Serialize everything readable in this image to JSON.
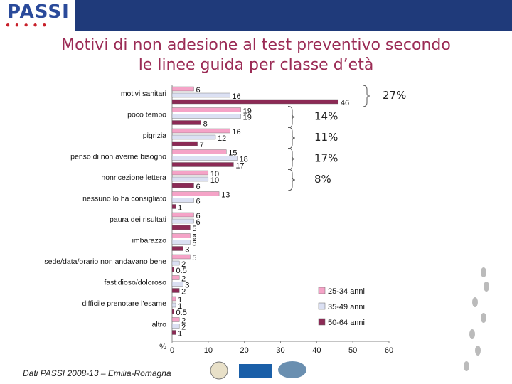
{
  "header": {
    "logo": "PASSI"
  },
  "title_line1": "Motivi di non adesione al test preventivo secondo",
  "title_line2": "le linee guida per classe d’età",
  "footer": {
    "source": "Dati PASSI 2008-13 – Emilia-Romagna"
  },
  "colors": {
    "s1": "#f5a3c7",
    "s2": "#dbe0f3",
    "s3": "#8c2a55",
    "title": "#9b2b55",
    "header": "#1f3a7a"
  },
  "chart_data": {
    "type": "bar",
    "orientation": "horizontal",
    "categories": [
      "motivi sanitari",
      "poco tempo",
      "pigrizia",
      "penso di non averne bisogno",
      "nonricezione lettera",
      "nessuno lo ha consigliato",
      "paura dei risultati",
      "imbarazzo",
      "sede/data/orario non andavano bene",
      "fastidioso/doloroso",
      "difficile prenotare l'esame",
      "altro"
    ],
    "series": [
      {
        "name": "25-34 anni",
        "values": [
          6,
          19,
          16,
          15,
          10,
          13,
          6,
          5,
          5,
          2,
          1,
          2
        ]
      },
      {
        "name": "35-49 anni",
        "values": [
          16,
          19,
          12,
          18,
          10,
          6,
          6,
          5,
          2,
          3,
          1,
          2
        ]
      },
      {
        "name": "50-64 anni",
        "values": [
          46,
          8,
          7,
          17,
          6,
          1,
          5,
          3,
          0.5,
          2,
          0.5,
          1
        ]
      }
    ],
    "value_labels": [
      [
        "6",
        "16",
        "46"
      ],
      [
        "19",
        "19",
        "8"
      ],
      [
        "16",
        "12",
        "7"
      ],
      [
        "15",
        "18",
        "17"
      ],
      [
        "10",
        "10",
        "6"
      ],
      [
        "13",
        "6",
        "1"
      ],
      [
        "6",
        "6",
        "5"
      ],
      [
        "5",
        "5",
        "3"
      ],
      [
        "5",
        "2",
        "0.5"
      ],
      [
        "2",
        "3",
        "2"
      ],
      [
        "1",
        "1",
        "0.5"
      ],
      [
        "2",
        "2",
        "1"
      ]
    ],
    "xlabel": "%",
    "xlim": [
      0,
      60
    ],
    "xticks": [
      "0",
      "10",
      "20",
      "30",
      "40",
      "50",
      "60"
    ],
    "legend_position": "bottom-right",
    "annotations": [
      {
        "category": "motivi sanitari",
        "text": "27%"
      },
      {
        "category": "poco tempo",
        "text": "14%"
      },
      {
        "category": "pigrizia",
        "text": "11%"
      },
      {
        "category": "penso di non averne bisogno",
        "text": "17%"
      },
      {
        "category": "nonricezione lettera",
        "text": "8%"
      }
    ]
  }
}
